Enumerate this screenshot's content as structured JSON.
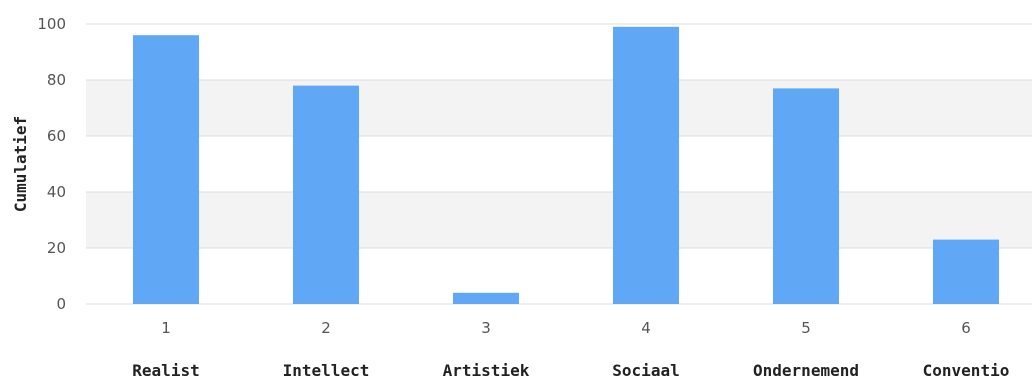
{
  "chart_data": {
    "type": "bar",
    "categories": [
      "1",
      "2",
      "3",
      "4",
      "5",
      "6"
    ],
    "category_names": [
      "Realist",
      "Intellect",
      "Artistiek",
      "Sociaal",
      "Ondernemend",
      "Conventio"
    ],
    "values": [
      96,
      78,
      4,
      99,
      77,
      23
    ],
    "ylabel": "Cumulatief",
    "ylim": [
      0,
      100
    ],
    "yticks": [
      0,
      20,
      40,
      60,
      80,
      100
    ],
    "grid": true,
    "bar_color": "#60a8f5",
    "band_color": "#f3f3f3",
    "grid_color": "#dddddd"
  }
}
